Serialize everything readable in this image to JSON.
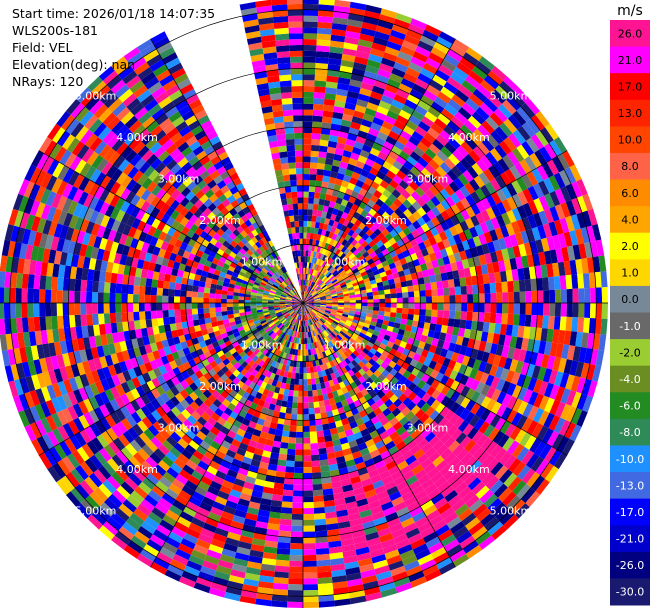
{
  "info": {
    "start_time": "Start time: 2026/01/18 14:07:35",
    "site": "WLS200s-181",
    "field": "Field: VEL",
    "elevation": "Elevation(deg): nan",
    "nrays": "NRays: 120"
  },
  "colorbar": {
    "unit": "m/s",
    "levels": [
      {
        "label": "26.0",
        "color": "#ff1493"
      },
      {
        "label": "21.0",
        "color": "#ff00ff"
      },
      {
        "label": "17.0",
        "color": "#ff0000"
      },
      {
        "label": "13.0",
        "color": "#ff2400"
      },
      {
        "label": "10.0",
        "color": "#ff4500"
      },
      {
        "label": "8.0",
        "color": "#ff6347"
      },
      {
        "label": "6.0",
        "color": "#ff8c00"
      },
      {
        "label": "4.0",
        "color": "#ffa500"
      },
      {
        "label": "2.0",
        "color": "#ffff00"
      },
      {
        "label": "1.0",
        "color": "#ffd700"
      },
      {
        "label": "0.0",
        "color": "#778899"
      },
      {
        "label": "-1.0",
        "color": "#696969"
      },
      {
        "label": "-2.0",
        "color": "#9acd32"
      },
      {
        "label": "-4.0",
        "color": "#6b8e23"
      },
      {
        "label": "-6.0",
        "color": "#228b22"
      },
      {
        "label": "-8.0",
        "color": "#2e8b57"
      },
      {
        "label": "-10.0",
        "color": "#1e90ff"
      },
      {
        "label": "-13.0",
        "color": "#4169e1"
      },
      {
        "label": "-17.0",
        "color": "#0000ff"
      },
      {
        "label": "-21.0",
        "color": "#0000cd"
      },
      {
        "label": "-26.0",
        "color": "#000080"
      },
      {
        "label": "-30.0",
        "color": "#191970"
      }
    ]
  },
  "chart_data": {
    "type": "heatmap",
    "projection": "polar-ppi",
    "field": "VEL",
    "nrays": 120,
    "range_rings_km": [
      1,
      2,
      3,
      4,
      5
    ],
    "range_ring_labels": [
      "1.00km",
      "2.00km",
      "3.00km",
      "4.00km",
      "5.00km"
    ],
    "range_label_azimuths_deg": [
      45,
      135,
      225,
      315
    ],
    "spoke_azimuths_deg": [
      0,
      30,
      60,
      90,
      120,
      150,
      180,
      210,
      240,
      270,
      300,
      330
    ],
    "missing_sector_deg": [
      333,
      348
    ],
    "max_range_km": 5.2,
    "gate_spacing_km": 0.1,
    "value_unit": "m/s",
    "value_range": [
      -30,
      30
    ],
    "near_range_bias": [
      {
        "azimuth_deg": 90,
        "range_km": [
          0.2,
          1.2
        ],
        "mean_value": 5
      },
      {
        "azimuth_deg": 270,
        "range_km": [
          0.2,
          1.2
        ],
        "mean_value": -3
      }
    ],
    "far_range_band": {
      "azimuth_deg": [
        125,
        170
      ],
      "range_km": [
        3.0,
        4.5
      ],
      "mean_value": 26
    }
  }
}
